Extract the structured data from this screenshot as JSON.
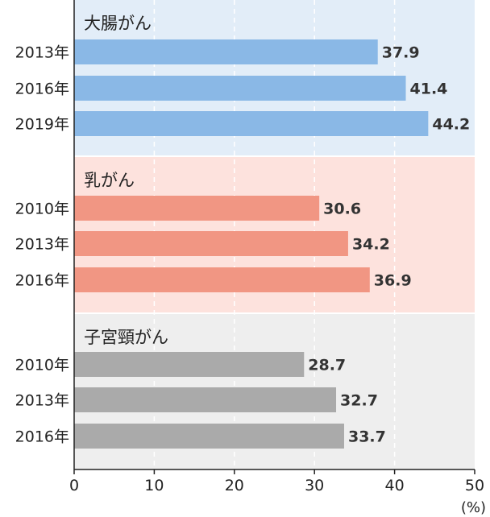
{
  "chart_data": {
    "type": "bar",
    "orientation": "horizontal",
    "xlim": [
      0,
      50
    ],
    "xticks": [
      "0",
      "10",
      "20",
      "30",
      "40",
      "50"
    ],
    "xunit": "(%)",
    "grid": "vertical-dashed",
    "groups": [
      {
        "name": "大腸がん",
        "bar_color": "#8ab8e6",
        "band_color": "#e2edf8",
        "items": [
          {
            "year": "2013年",
            "value": 37.9,
            "label": "37.9"
          },
          {
            "year": "2016年",
            "value": 41.4,
            "label": "41.4"
          },
          {
            "year": "2019年",
            "value": 44.2,
            "label": "44.2"
          }
        ]
      },
      {
        "name": "乳がん",
        "bar_color": "#f19683",
        "band_color": "#fde2dd",
        "items": [
          {
            "year": "2010年",
            "value": 30.6,
            "label": "30.6"
          },
          {
            "year": "2013年",
            "value": 34.2,
            "label": "34.2"
          },
          {
            "year": "2016年",
            "value": 36.9,
            "label": "36.9"
          }
        ]
      },
      {
        "name": "子宮頸がん",
        "bar_color": "#aaaaaa",
        "band_color": "#eeeeee",
        "items": [
          {
            "year": "2010年",
            "value": 28.7,
            "label": "28.7"
          },
          {
            "year": "2013年",
            "value": 32.7,
            "label": "32.7"
          },
          {
            "year": "2016年",
            "value": 33.7,
            "label": "33.7"
          }
        ]
      }
    ]
  }
}
